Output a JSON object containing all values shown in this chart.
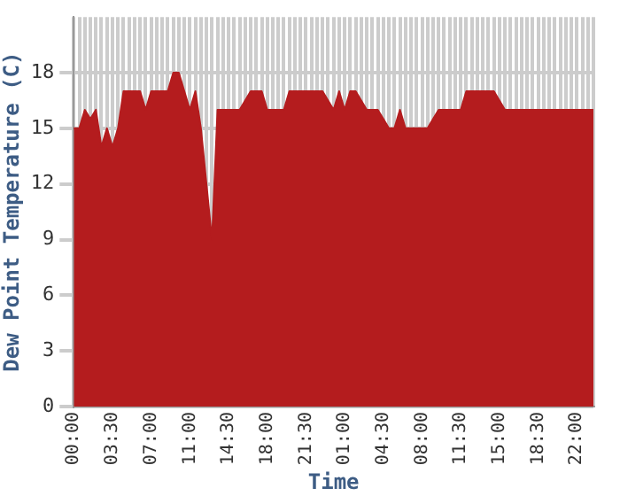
{
  "chart_data": {
    "type": "area",
    "xlabel": "Time",
    "ylabel": "Dew Point Temperature (C)",
    "categories": [
      "00:00",
      null,
      null,
      null,
      null,
      null,
      null,
      "03:30",
      null,
      null,
      null,
      null,
      null,
      null,
      "07:00",
      null,
      null,
      null,
      null,
      null,
      null,
      "11:00",
      null,
      null,
      null,
      null,
      null,
      null,
      "14:30",
      null,
      null,
      null,
      null,
      null,
      null,
      "18:00",
      null,
      null,
      null,
      null,
      null,
      null,
      "21:30",
      null,
      null,
      null,
      null,
      null,
      null,
      "01:00",
      null,
      null,
      null,
      null,
      null,
      null,
      "04:30",
      null,
      null,
      null,
      null,
      null,
      null,
      "08:00",
      null,
      null,
      null,
      null,
      null,
      null,
      "11:30",
      null,
      null,
      null,
      null,
      null,
      null,
      "15:00",
      null,
      null,
      null,
      null,
      null,
      null,
      "18:30",
      null,
      null,
      null,
      null,
      null,
      null,
      "22:00",
      null,
      null,
      null
    ],
    "series": [
      {
        "color": "#b41c1e",
        "values": [
          15,
          15,
          16,
          15.5,
          16,
          14,
          15,
          14,
          15,
          17,
          17,
          17,
          17,
          16,
          17,
          17,
          17,
          17,
          18,
          18,
          17,
          16,
          17,
          15,
          12,
          9,
          16,
          16,
          16,
          16,
          16,
          16.5,
          17,
          17,
          17,
          16,
          16,
          16,
          16,
          17,
          17,
          17,
          17,
          17,
          17,
          17,
          16.5,
          16,
          17,
          16,
          17,
          17,
          16.5,
          16,
          16,
          16,
          15.5,
          15,
          15,
          16,
          15,
          15,
          15,
          15,
          15,
          15.5,
          16,
          16,
          16,
          16,
          16,
          17,
          17,
          17,
          17,
          17,
          17,
          16.5,
          16,
          16,
          16,
          16,
          16,
          16,
          16,
          16,
          16,
          16,
          16,
          16,
          16,
          16,
          16,
          16,
          16
        ]
      }
    ],
    "ylim": [
      0,
      21
    ],
    "yticks": [
      0,
      3,
      6,
      9,
      12,
      15,
      18
    ],
    "grid": true,
    "marker": "none",
    "legend": false
  }
}
